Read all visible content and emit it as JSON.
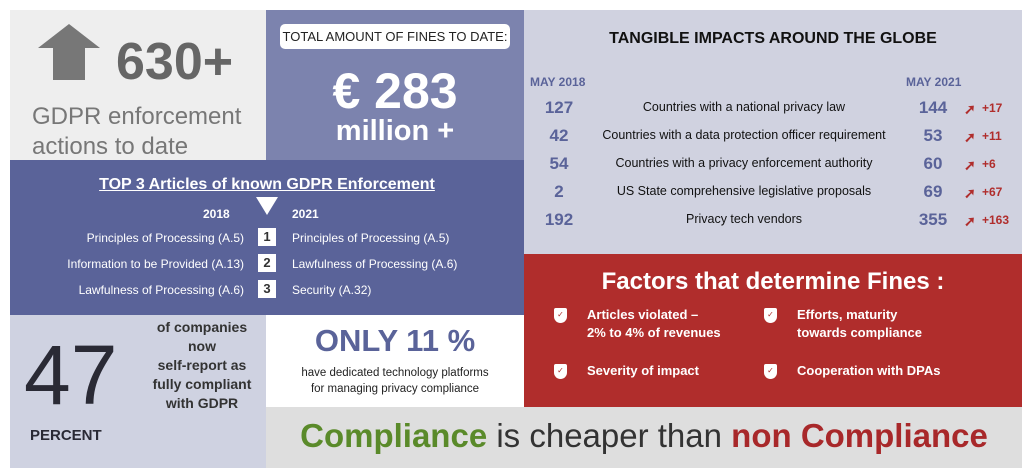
{
  "enforcement": {
    "count": "630+",
    "label_line1": "GDPR enforcement",
    "label_line2": "actions to date"
  },
  "fines": {
    "label": "TOTAL AMOUNT OF FINES TO DATE:",
    "amount": "€ 283",
    "unit": "million +"
  },
  "global": {
    "title": "TANGIBLE IMPACTS AROUND THE GLOBE",
    "col_2018": "MAY 2018",
    "col_2021": "MAY 2021",
    "rows": [
      {
        "v2018": "127",
        "label": "Countries with a national privacy law",
        "v2021": "144",
        "delta": "+17"
      },
      {
        "v2018": "42",
        "label": "Countries with a data protection officer requirement",
        "v2021": "53",
        "delta": "+11"
      },
      {
        "v2018": "54",
        "label": "Countries with a privacy enforcement authority",
        "v2021": "60",
        "delta": "+6"
      },
      {
        "v2018": "2",
        "label": "US State comprehensive legislative proposals",
        "v2021": "69",
        "delta": "+67"
      },
      {
        "v2018": "192",
        "label": "Privacy tech vendors",
        "v2021": "355",
        "delta": "+163"
      }
    ]
  },
  "top3": {
    "title": "TOP 3 Articles of known GDPR Enforcement",
    "year_a": "2018",
    "year_b": "2021",
    "rows": [
      {
        "rank": "1",
        "a2018": "Principles of Processing (A.5)",
        "a2021": "Principles of Processing (A.5)"
      },
      {
        "rank": "2",
        "a2018": "Information to be Provided (A.13)",
        "a2021": "Lawfulness of Processing (A.6)"
      },
      {
        "rank": "3",
        "a2018": "Lawfulness of Processing (A.6)",
        "a2021": "Security (A.32)"
      }
    ]
  },
  "factors": {
    "title": "Factors that determine Fines :",
    "items": [
      {
        "line1": "Articles violated –",
        "line2": "2% to 4% of revenues"
      },
      {
        "line1": "Efforts, maturity",
        "line2": "towards compliance"
      },
      {
        "line1": "Severity of impact",
        "line2": ""
      },
      {
        "line1": "Cooperation with DPAs",
        "line2": ""
      }
    ]
  },
  "compliant": {
    "number": "47",
    "unit": "PERCENT",
    "l1": "of companies",
    "l2": "now",
    "l3": "self-report as",
    "l4": "fully compliant",
    "l5": "with GDPR"
  },
  "platforms": {
    "headline": "ONLY 11 %",
    "line1": "have dedicated technology platforms",
    "line2": "for managing privacy compliance"
  },
  "slogan": {
    "part1": "Compliance",
    "part2": " is cheaper than ",
    "part3": "non Compliance"
  },
  "colors": {
    "navy": "#5a6399",
    "red": "#b02d2c",
    "green": "#5a8a2a"
  }
}
